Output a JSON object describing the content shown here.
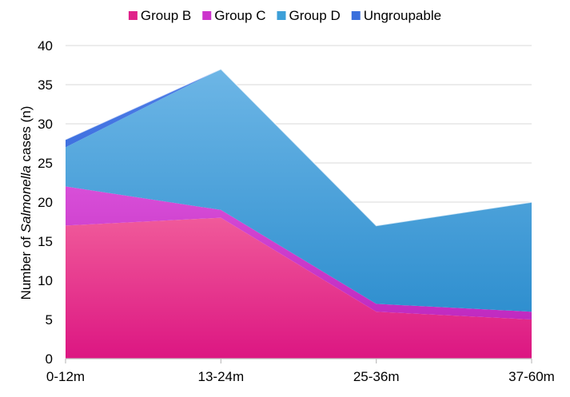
{
  "chart_data": {
    "type": "area",
    "stacked": true,
    "title": "",
    "xlabel": "",
    "ylabel": {
      "prefix": "Number of ",
      "italic": "Salmonella",
      "suffix": " cases (n)"
    },
    "categories": [
      "0-12m",
      "13-24m",
      "25-36m",
      "37-60m"
    ],
    "ylim": [
      0,
      40
    ],
    "yticks": [
      "0",
      "5",
      "10",
      "15",
      "20",
      "25",
      "30",
      "35",
      "40"
    ],
    "grid": true,
    "legend_position": "top",
    "series": [
      {
        "name": "Group B",
        "color": "#e0228a",
        "values": [
          17,
          18,
          6,
          5
        ]
      },
      {
        "name": "Group C",
        "color": "#cc33cc",
        "values": [
          5,
          1,
          1,
          1
        ]
      },
      {
        "name": "Group D",
        "color": "#3d9fd8",
        "values": [
          5,
          18,
          10,
          14
        ]
      },
      {
        "name": "Ungroupable",
        "color": "#3a6fdc",
        "values": [
          1,
          0,
          0,
          0
        ]
      }
    ]
  }
}
